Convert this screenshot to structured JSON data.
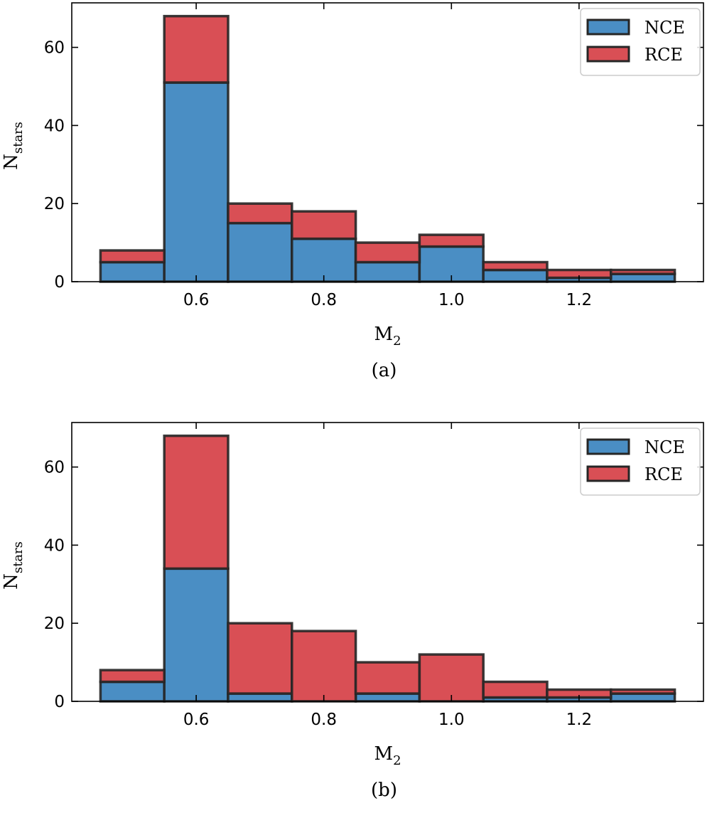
{
  "chart_data": [
    {
      "type": "bar",
      "stacked": true,
      "caption": "(a)",
      "x": [
        0.5,
        0.6,
        0.7,
        0.8,
        0.9,
        1.0,
        1.1,
        1.2,
        1.3
      ],
      "bin_width": 0.1,
      "series": [
        {
          "name": "NCE",
          "color": "#4a8ec4",
          "values": [
            5,
            51,
            15,
            11,
            5,
            9,
            3,
            1,
            2
          ]
        },
        {
          "name": "RCE",
          "color": "#d94f55",
          "values": [
            3,
            17,
            5,
            7,
            5,
            3,
            2,
            2,
            1
          ]
        }
      ],
      "xlabel": "M",
      "xlabel_sub": "2",
      "ylabel": "N",
      "ylabel_sub": "stars",
      "xlim": [
        0.405,
        1.395
      ],
      "ylim": [
        0,
        71.4
      ],
      "xticks": [
        0.6,
        0.8,
        1.0,
        1.2
      ],
      "xtick_labels": [
        "0.6",
        "0.8",
        "1.0",
        "1.2"
      ],
      "yticks": [
        0,
        20,
        40,
        60
      ],
      "ytick_labels": [
        "0",
        "20",
        "40",
        "60"
      ],
      "legend": "top-right",
      "grid": false
    },
    {
      "type": "bar",
      "stacked": true,
      "caption": "(b)",
      "x": [
        0.5,
        0.6,
        0.7,
        0.8,
        0.9,
        1.0,
        1.1,
        1.2,
        1.3
      ],
      "bin_width": 0.1,
      "series": [
        {
          "name": "NCE",
          "color": "#4a8ec4",
          "values": [
            5,
            34,
            2,
            0,
            2,
            0,
            1,
            1,
            2
          ]
        },
        {
          "name": "RCE",
          "color": "#d94f55",
          "values": [
            3,
            34,
            18,
            18,
            8,
            12,
            4,
            2,
            1
          ]
        }
      ],
      "xlabel": "M",
      "xlabel_sub": "2",
      "ylabel": "N",
      "ylabel_sub": "stars",
      "xlim": [
        0.405,
        1.395
      ],
      "ylim": [
        0,
        71.4
      ],
      "xticks": [
        0.6,
        0.8,
        1.0,
        1.2
      ],
      "xtick_labels": [
        "0.6",
        "0.8",
        "1.0",
        "1.2"
      ],
      "yticks": [
        0,
        20,
        40,
        60
      ],
      "ytick_labels": [
        "0",
        "20",
        "40",
        "60"
      ],
      "legend": "top-right",
      "grid": false
    }
  ]
}
